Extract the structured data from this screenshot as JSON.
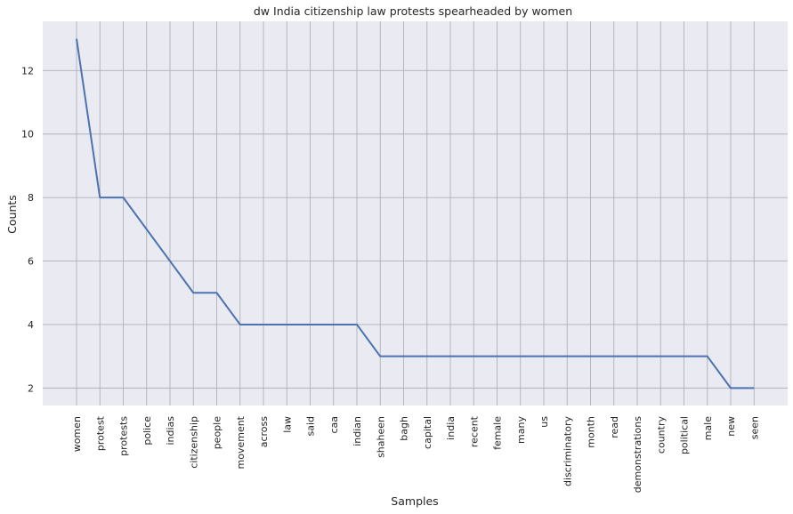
{
  "chart_data": {
    "type": "line",
    "title": "dw India citizenship law protests spearheaded by women",
    "xlabel": "Samples",
    "ylabel": "Counts",
    "categories": [
      "women",
      "protest",
      "protests",
      "police",
      "indias",
      "citizenship",
      "people",
      "movement",
      "across",
      "law",
      "said",
      "caa",
      "indian",
      "shaheen",
      "bagh",
      "capital",
      "india",
      "recent",
      "female",
      "many",
      "us",
      "discriminatory",
      "month",
      "read",
      "demonstrations",
      "country",
      "political",
      "male",
      "new",
      "seen"
    ],
    "series": [
      {
        "values": [
          13,
          8,
          8,
          7,
          6,
          5,
          5,
          4,
          4,
          4,
          4,
          4,
          4,
          3,
          3,
          3,
          3,
          3,
          3,
          3,
          3,
          3,
          3,
          3,
          3,
          3,
          3,
          3,
          2,
          2
        ]
      }
    ],
    "yticks": [
      2,
      4,
      6,
      8,
      10,
      12
    ],
    "ylim": [
      1.45,
      13.55
    ],
    "grid": true,
    "colors": {
      "line": "#4c72b0",
      "background": "#eaeaf2",
      "grid": "#b0b0b8"
    }
  }
}
